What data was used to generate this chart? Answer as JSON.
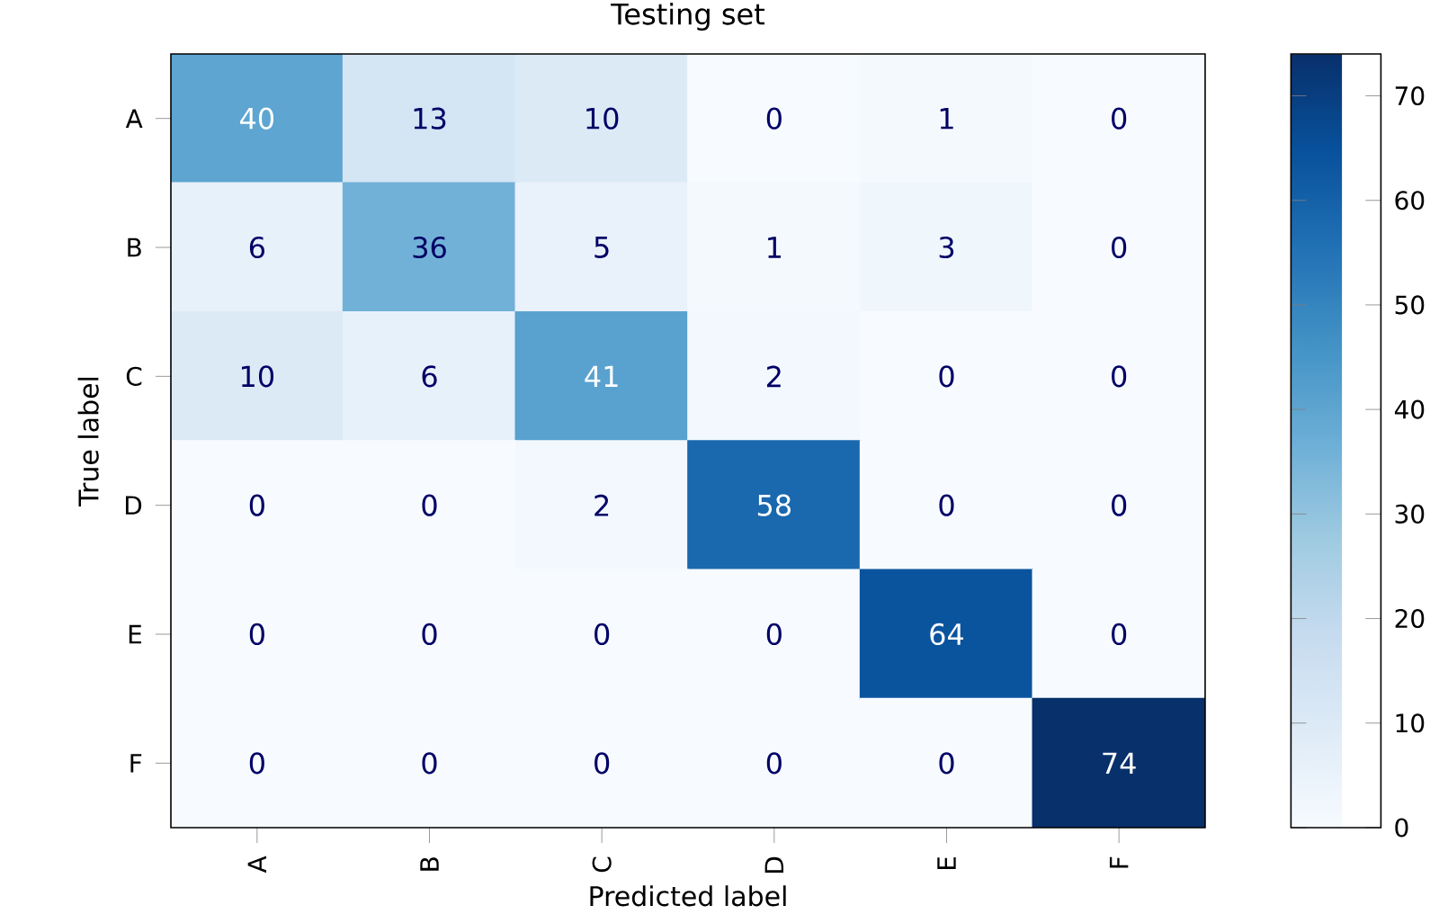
{
  "chart_data": {
    "type": "heatmap",
    "title": "Testing set",
    "xlabel": "Predicted label",
    "ylabel": "True label",
    "categories": [
      "A",
      "B",
      "C",
      "D",
      "E",
      "F"
    ],
    "y_categories": [
      "A",
      "B",
      "C",
      "D",
      "E",
      "F"
    ],
    "cells": [
      [
        40,
        13,
        10,
        0,
        1,
        0
      ],
      [
        6,
        36,
        5,
        1,
        3,
        0
      ],
      [
        10,
        6,
        41,
        2,
        0,
        0
      ],
      [
        0,
        0,
        2,
        58,
        0,
        0
      ],
      [
        0,
        0,
        0,
        0,
        64,
        0
      ],
      [
        0,
        0,
        0,
        0,
        0,
        74
      ]
    ],
    "clim": [
      0,
      74
    ],
    "cticks": [
      0,
      10,
      20,
      30,
      40,
      50,
      60,
      70
    ],
    "data_labels": true
  }
}
